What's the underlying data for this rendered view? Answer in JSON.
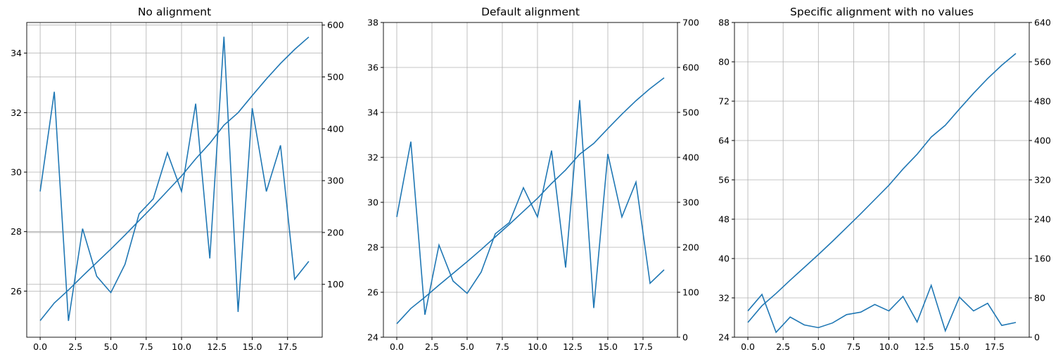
{
  "chart_data": [
    {
      "type": "line",
      "title": "No alignment",
      "x": [
        0,
        1,
        2,
        3,
        4,
        5,
        6,
        7,
        8,
        9,
        10,
        11,
        12,
        13,
        14,
        15,
        16,
        17,
        18,
        19
      ],
      "series": [
        {
          "color": "#1f77b4",
          "values": [
            29.35,
            32.7,
            25.0,
            28.1,
            26.5,
            25.95,
            26.9,
            28.6,
            29.1,
            30.65,
            29.35,
            32.3,
            27.1,
            34.55,
            25.3,
            32.15,
            29.35,
            30.9,
            26.4,
            27.0
          ]
        },
        {
          "color": "#1f77b4",
          "axis": "y2",
          "values": [
            30,
            64,
            89,
            116,
            142,
            168,
            195,
            223,
            251,
            280,
            309,
            342,
            372,
            407,
            431,
            464,
            496,
            526,
            553,
            577
          ]
        }
      ],
      "xlim": [
        -0.95,
        19.95
      ],
      "xticks": [
        {
          "value": 0,
          "label": "0.0"
        },
        2.5,
        {
          "value": 5,
          "label": "5.0"
        },
        7.5,
        {
          "value": 10,
          "label": "10.0"
        },
        12.5,
        {
          "value": 15,
          "label": "15.0"
        },
        17.5
      ],
      "ylim": [
        24.45,
        35.03
      ],
      "yticks": [
        26,
        28,
        30,
        32,
        34
      ],
      "y2lim": [
        -2,
        605
      ],
      "y2ticks": [
        100,
        200,
        300,
        400,
        500,
        600
      ],
      "grid": true,
      "y2grid": true
    },
    {
      "type": "line",
      "title": "Default alignment",
      "x": [
        0,
        1,
        2,
        3,
        4,
        5,
        6,
        7,
        8,
        9,
        10,
        11,
        12,
        13,
        14,
        15,
        16,
        17,
        18,
        19
      ],
      "series": [
        {
          "color": "#1f77b4",
          "values": [
            29.35,
            32.7,
            25.0,
            28.1,
            26.5,
            25.95,
            26.9,
            28.6,
            29.1,
            30.65,
            29.35,
            32.3,
            27.1,
            34.55,
            25.3,
            32.15,
            29.35,
            30.9,
            26.4,
            27.0
          ]
        },
        {
          "color": "#1f77b4",
          "axis": "y2",
          "values": [
            30,
            64,
            89,
            116,
            142,
            168,
            195,
            223,
            251,
            280,
            309,
            342,
            372,
            407,
            431,
            464,
            496,
            526,
            553,
            577
          ]
        }
      ],
      "xlim": [
        -0.95,
        19.95
      ],
      "xticks": [
        {
          "value": 0,
          "label": "0.0"
        },
        2.5,
        {
          "value": 5,
          "label": "5.0"
        },
        7.5,
        {
          "value": 10,
          "label": "10.0"
        },
        12.5,
        {
          "value": 15,
          "label": "15.0"
        },
        17.5
      ],
      "ylim": [
        24,
        38
      ],
      "yticks": [
        24,
        26,
        28,
        30,
        32,
        34,
        36,
        38
      ],
      "y2lim": [
        0,
        700
      ],
      "y2ticks": [
        0,
        100,
        200,
        300,
        400,
        500,
        600,
        700
      ],
      "grid": true,
      "y2grid": false
    },
    {
      "type": "line",
      "title": "Specific alignment with no values",
      "x": [
        0,
        1,
        2,
        3,
        4,
        5,
        6,
        7,
        8,
        9,
        10,
        11,
        12,
        13,
        14,
        15,
        16,
        17,
        18,
        19
      ],
      "series": [
        {
          "color": "#1f77b4",
          "values": [
            29.35,
            32.7,
            25.0,
            28.1,
            26.5,
            25.95,
            26.9,
            28.6,
            29.1,
            30.65,
            29.35,
            32.3,
            27.1,
            34.55,
            25.3,
            32.15,
            29.35,
            30.9,
            26.4,
            27.0
          ]
        },
        {
          "color": "#1f77b4",
          "axis": "y2",
          "values": [
            30,
            64,
            89,
            116,
            142,
            168,
            195,
            223,
            251,
            280,
            309,
            342,
            372,
            407,
            431,
            464,
            496,
            526,
            553,
            577
          ]
        }
      ],
      "xlim": [
        -0.95,
        19.95
      ],
      "xticks": [
        {
          "value": 0,
          "label": "0.0"
        },
        2.5,
        {
          "value": 5,
          "label": "5.0"
        },
        7.5,
        {
          "value": 10,
          "label": "10.0"
        },
        12.5,
        {
          "value": 15,
          "label": "15.0"
        },
        17.5
      ],
      "ylim": [
        24,
        88
      ],
      "yticks": [
        24,
        32,
        40,
        48,
        56,
        64,
        72,
        80,
        88
      ],
      "y2lim": [
        0,
        640
      ],
      "y2ticks": [
        0,
        80,
        160,
        240,
        320,
        400,
        480,
        560,
        640
      ],
      "grid": true,
      "y2grid": false
    }
  ]
}
